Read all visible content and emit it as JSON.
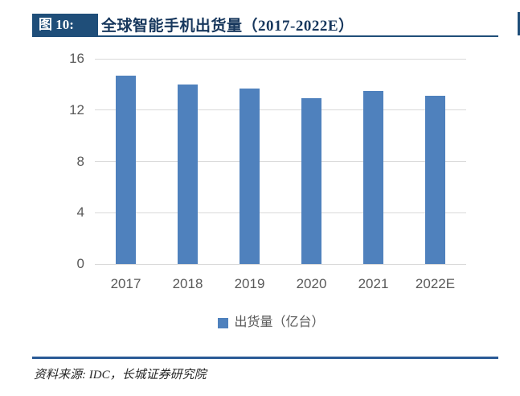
{
  "header": {
    "figure_label": "图 10:",
    "title": "全球智能手机出货量（2017-2022E）"
  },
  "chart_data": {
    "type": "bar",
    "title": "全球智能手机出货量（2017-2022E）",
    "categories": [
      "2017",
      "2018",
      "2019",
      "2020",
      "2021",
      "2022E"
    ],
    "values": [
      14.7,
      14.0,
      13.7,
      12.9,
      13.5,
      13.1
    ],
    "unit": "亿台",
    "xlabel": "",
    "ylabel": "",
    "ylim": [
      0,
      16
    ],
    "yticks": [
      0,
      4,
      8,
      12,
      16
    ],
    "grid": true,
    "bar_color": "#4F81BD",
    "legend": {
      "label": "出货量（亿台）",
      "position": "bottom",
      "swatch_color": "#4F81BD"
    }
  },
  "colors": {
    "header_navy": "#1F4E79",
    "title_blue": "#17375D",
    "divider_blue": "#2A5A96",
    "gridline_gray": "#D9D9D9",
    "axis_text_gray": "#595959"
  },
  "footer": {
    "source": "资料来源: IDC，长城证券研究院"
  }
}
